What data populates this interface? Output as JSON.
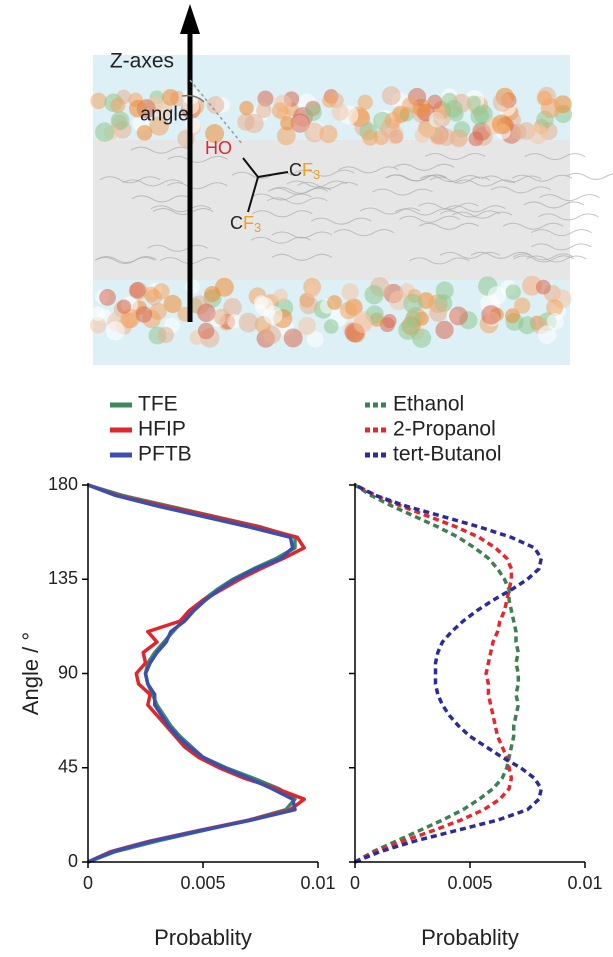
{
  "illustration": {
    "z_axis_label": "Z-axes",
    "angle_label": "angle",
    "hydroxyl": "HO",
    "cf3_upper": {
      "c": "C",
      "f": "F",
      "n": "3"
    },
    "cf3_lower": {
      "c": "C",
      "f": "F",
      "n": "3"
    }
  },
  "chart_data": [
    {
      "type": "line",
      "line_style": "solid",
      "xlabel": "Probablity",
      "ylabel": "Angle / °",
      "xlim": [
        0,
        0.01
      ],
      "xticks": [
        0,
        0.005,
        0.01
      ],
      "ylim": [
        0,
        180
      ],
      "yticks": [
        0,
        45,
        90,
        135,
        180
      ],
      "show_ytick_labels": true,
      "y": [
        0,
        5,
        10,
        15,
        20,
        25,
        30,
        35,
        40,
        45,
        50,
        55,
        60,
        65,
        70,
        75,
        80,
        85,
        90,
        95,
        100,
        105,
        110,
        115,
        120,
        125,
        130,
        135,
        140,
        145,
        150,
        155,
        160,
        165,
        170,
        175,
        180
      ],
      "series": [
        {
          "name": "TFE",
          "color": "#3b8a5c",
          "values": [
            0,
            0.0012,
            0.003,
            0.005,
            0.007,
            0.0086,
            0.009,
            0.0083,
            0.0072,
            0.006,
            0.005,
            0.0045,
            0.004,
            0.0036,
            0.0033,
            0.003,
            0.0028,
            0.0026,
            0.0025,
            0.0026,
            0.0029,
            0.0033,
            0.0037,
            0.0041,
            0.0045,
            0.005,
            0.0056,
            0.0063,
            0.0072,
            0.0082,
            0.009,
            0.009,
            0.0075,
            0.0055,
            0.0035,
            0.0015,
            0
          ]
        },
        {
          "name": "HFIP",
          "color": "#e0262b",
          "values": [
            0,
            0.001,
            0.0027,
            0.0048,
            0.007,
            0.0088,
            0.0094,
            0.0082,
            0.0068,
            0.0057,
            0.0048,
            0.0042,
            0.0038,
            0.0034,
            0.003,
            0.0026,
            0.0027,
            0.0022,
            0.0021,
            0.0025,
            0.0024,
            0.003,
            0.0026,
            0.004,
            0.0044,
            0.005,
            0.0058,
            0.0066,
            0.0075,
            0.0085,
            0.0094,
            0.0091,
            0.0074,
            0.0054,
            0.0033,
            0.0013,
            0
          ]
        },
        {
          "name": "PFTB",
          "color": "#3b4fb0",
          "values": [
            0,
            0.0011,
            0.0028,
            0.0049,
            0.0071,
            0.009,
            0.0089,
            0.008,
            0.007,
            0.0059,
            0.005,
            0.0044,
            0.0039,
            0.0035,
            0.0032,
            0.0029,
            0.0029,
            0.0026,
            0.0025,
            0.0027,
            0.003,
            0.0034,
            0.0036,
            0.0042,
            0.0046,
            0.0051,
            0.0057,
            0.0064,
            0.0073,
            0.0084,
            0.0089,
            0.0088,
            0.007,
            0.005,
            0.003,
            0.0012,
            0
          ]
        }
      ]
    },
    {
      "type": "line",
      "line_style": "dashed",
      "xlabel": "Probablity",
      "xlim": [
        0,
        0.01
      ],
      "xticks": [
        0,
        0.005,
        0.01
      ],
      "ylim": [
        0,
        180
      ],
      "yticks": [
        0,
        45,
        90,
        135,
        180
      ],
      "show_ytick_labels": false,
      "y": [
        0,
        5,
        10,
        15,
        20,
        25,
        30,
        35,
        40,
        45,
        50,
        55,
        60,
        65,
        70,
        75,
        80,
        85,
        90,
        95,
        100,
        105,
        110,
        115,
        120,
        125,
        130,
        135,
        140,
        145,
        150,
        155,
        160,
        165,
        170,
        175,
        180
      ],
      "series": [
        {
          "name": "Ethanol",
          "color": "#3f7f55",
          "values": [
            0,
            0.0008,
            0.0018,
            0.0028,
            0.0038,
            0.0047,
            0.0054,
            0.006,
            0.0064,
            0.0066,
            0.0067,
            0.0068,
            0.0069,
            0.0069,
            0.007,
            0.0071,
            0.007,
            0.0071,
            0.0071,
            0.007,
            0.0071,
            0.007,
            0.007,
            0.0069,
            0.0068,
            0.0067,
            0.0067,
            0.0065,
            0.0062,
            0.0058,
            0.0052,
            0.0045,
            0.0036,
            0.0026,
            0.0016,
            0.0007,
            0
          ]
        },
        {
          "name": "2-Propanol",
          "color": "#e8262b",
          "values": [
            0,
            0.0009,
            0.0021,
            0.0034,
            0.0046,
            0.0056,
            0.0063,
            0.0067,
            0.0068,
            0.0067,
            0.0066,
            0.0064,
            0.0062,
            0.0061,
            0.006,
            0.0059,
            0.0058,
            0.0058,
            0.0057,
            0.0058,
            0.0059,
            0.006,
            0.0062,
            0.0063,
            0.0065,
            0.0066,
            0.0067,
            0.0068,
            0.0068,
            0.0066,
            0.0061,
            0.0054,
            0.0044,
            0.0032,
            0.002,
            0.0009,
            0
          ]
        },
        {
          "name": "tert-Butanol",
          "color": "#2a2c9a",
          "values": [
            0,
            0.0011,
            0.0026,
            0.0044,
            0.0062,
            0.0075,
            0.008,
            0.0081,
            0.0078,
            0.0072,
            0.0064,
            0.0057,
            0.005,
            0.0045,
            0.0041,
            0.0038,
            0.0036,
            0.0035,
            0.0035,
            0.0035,
            0.0036,
            0.0038,
            0.0042,
            0.0047,
            0.0053,
            0.006,
            0.0068,
            0.0075,
            0.008,
            0.0081,
            0.0078,
            0.0068,
            0.0054,
            0.0038,
            0.0022,
            0.0009,
            0
          ]
        }
      ]
    }
  ]
}
